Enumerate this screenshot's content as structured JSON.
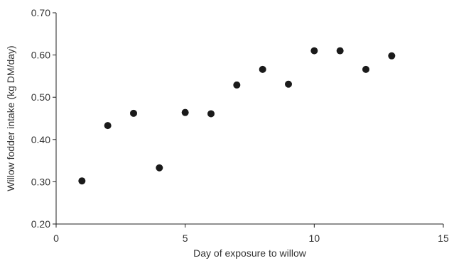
{
  "chart_data": {
    "type": "scatter",
    "title": "",
    "xlabel": "Day of exposure to willow",
    "ylabel": "Willow fodder intake (kg DM/day)",
    "xlim": [
      0,
      15
    ],
    "ylim": [
      0.2,
      0.7
    ],
    "x_ticks": [
      "0",
      "5",
      "10",
      "15"
    ],
    "y_ticks": [
      "0.20",
      "0.30",
      "0.40",
      "0.50",
      "0.60",
      "0.70"
    ],
    "grid": false,
    "legend": "none",
    "series": [
      {
        "x": [
          1,
          2,
          3,
          4,
          5,
          6,
          7,
          8,
          9,
          10,
          11,
          12,
          13
        ],
        "y": [
          0.302,
          0.433,
          0.462,
          0.333,
          0.464,
          0.461,
          0.529,
          0.566,
          0.531,
          0.61,
          0.61,
          0.566,
          0.598
        ],
        "color": "#1a1a1a"
      }
    ]
  }
}
